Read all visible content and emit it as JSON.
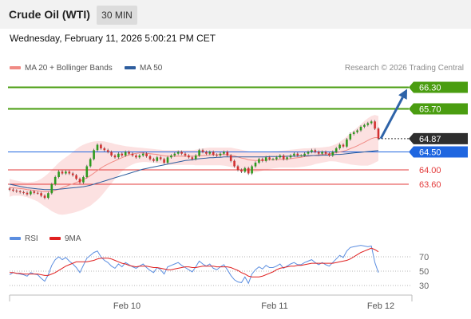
{
  "header": {
    "title": "Crude Oil (WTI)",
    "timeframe": "30 MIN"
  },
  "datetime": "Wednesday, February 11, 2026 5:00:21 PM CET",
  "legend_main": [
    {
      "label": "MA 20 + Bollinger Bands",
      "color": "#f08a84"
    },
    {
      "label": "MA 50",
      "color": "#2e5e9e"
    }
  ],
  "legend_rsi": [
    {
      "label": "RSI",
      "color": "#5b8ee0"
    },
    {
      "label": "9MA",
      "color": "#e02020"
    }
  ],
  "copyright": "Research © 2026 Trading Central",
  "chart_data": {
    "type": "candlestick",
    "instrument": "Crude Oil (WTI)",
    "interval": "30 MIN",
    "x_ticks": [
      "Feb 10",
      "Feb 11",
      "Feb 12"
    ],
    "ylim": [
      62.6,
      66.6
    ],
    "last_price": {
      "value": 64.87,
      "label": "64.87",
      "color": "#2e2e2e"
    },
    "levels": [
      {
        "value": 66.3,
        "label": "66.30",
        "color": "#4a9d10",
        "kind": "resistance"
      },
      {
        "value": 65.7,
        "label": "65.70",
        "color": "#4a9d10",
        "kind": "resistance"
      },
      {
        "value": 64.5,
        "label": "64.50",
        "color": "#1f66e0",
        "kind": "pivot"
      },
      {
        "value": 64.0,
        "label": "64.00",
        "color": "#e33b3b",
        "kind": "support"
      },
      {
        "value": 63.6,
        "label": "63.60",
        "color": "#e33b3b",
        "kind": "support"
      }
    ],
    "projection": {
      "from": 64.87,
      "to": 66.3,
      "color": "#2e63a8"
    },
    "closes": [
      63.45,
      63.42,
      63.4,
      63.38,
      63.36,
      63.32,
      63.4,
      63.36,
      63.35,
      63.28,
      63.22,
      63.35,
      63.6,
      63.8,
      63.95,
      63.9,
      63.95,
      63.9,
      63.85,
      63.75,
      63.65,
      63.8,
      64.1,
      64.3,
      64.55,
      64.7,
      64.6,
      64.55,
      64.5,
      64.4,
      64.35,
      64.45,
      64.4,
      64.5,
      64.45,
      64.4,
      64.35,
      64.4,
      64.45,
      64.38,
      64.3,
      64.25,
      64.35,
      64.3,
      64.2,
      64.35,
      64.4,
      64.45,
      64.5,
      64.45,
      64.4,
      64.35,
      64.3,
      64.4,
      64.55,
      64.5,
      64.45,
      64.5,
      64.42,
      64.4,
      64.45,
      64.5,
      64.4,
      64.25,
      64.1,
      64.0,
      63.95,
      64.05,
      63.9,
      64.1,
      64.2,
      64.3,
      64.25,
      64.35,
      64.3,
      64.3,
      64.35,
      64.4,
      64.3,
      64.35,
      64.4,
      64.45,
      64.4,
      64.4,
      64.45,
      64.5,
      64.55,
      64.5,
      64.45,
      64.5,
      64.45,
      64.4,
      64.5,
      64.6,
      64.7,
      64.65,
      64.85,
      65.0,
      65.05,
      65.1,
      65.2,
      65.25,
      65.3,
      65.35,
      65.15,
      64.87
    ],
    "ma20": [
      63.5,
      63.5,
      63.49,
      63.48,
      63.47,
      63.45,
      63.44,
      63.43,
      63.42,
      63.4,
      63.39,
      63.39,
      63.4,
      63.43,
      63.46,
      63.5,
      63.54,
      63.58,
      63.61,
      63.65,
      63.69,
      63.73,
      63.78,
      63.84,
      63.91,
      63.98,
      64.05,
      64.11,
      64.16,
      64.21,
      64.25,
      64.3,
      64.34,
      64.38,
      64.42,
      64.44,
      64.46,
      64.47,
      64.47,
      64.46,
      64.45,
      64.44,
      64.43,
      64.41,
      64.39,
      64.38,
      64.38,
      64.38,
      64.38,
      64.38,
      64.38,
      64.38,
      64.38,
      64.38,
      64.39,
      64.4,
      64.41,
      64.42,
      64.42,
      64.42,
      64.43,
      64.43,
      64.42,
      64.41,
      64.39,
      64.36,
      64.33,
      64.31,
      64.28,
      64.27,
      64.26,
      64.26,
      64.26,
      64.27,
      64.28,
      64.28,
      64.28,
      64.29,
      64.29,
      64.3,
      64.31,
      64.33,
      64.34,
      64.35,
      64.37,
      64.38,
      64.39,
      64.41,
      64.42,
      64.43,
      64.44,
      64.45,
      64.46,
      64.48,
      64.5,
      64.52,
      64.55,
      64.59,
      64.63,
      64.67,
      64.72,
      64.77,
      64.82,
      64.87,
      64.9,
      64.9
    ],
    "ma50": [
      63.6,
      63.58,
      63.56,
      63.54,
      63.52,
      63.5,
      63.49,
      63.48,
      63.47,
      63.46,
      63.45,
      63.45,
      63.45,
      63.45,
      63.46,
      63.47,
      63.48,
      63.49,
      63.5,
      63.51,
      63.52,
      63.53,
      63.55,
      63.57,
      63.6,
      63.63,
      63.66,
      63.69,
      63.72,
      63.75,
      63.78,
      63.81,
      63.84,
      63.87,
      63.9,
      63.93,
      63.96,
      63.99,
      64.02,
      64.04,
      64.06,
      64.08,
      64.1,
      64.12,
      64.14,
      64.16,
      64.18,
      64.2,
      64.22,
      64.24,
      64.26,
      64.27,
      64.28,
      64.3,
      64.31,
      64.32,
      64.33,
      64.34,
      64.34,
      64.35,
      64.35,
      64.36,
      64.36,
      64.36,
      64.36,
      64.36,
      64.36,
      64.36,
      64.36,
      64.36,
      64.36,
      64.36,
      64.36,
      64.36,
      64.37,
      64.37,
      64.37,
      64.37,
      64.37,
      64.38,
      64.38,
      64.38,
      64.38,
      64.39,
      64.39,
      64.39,
      64.4,
      64.4,
      64.4,
      64.41,
      64.41,
      64.41,
      64.42,
      64.43,
      64.43,
      64.44,
      64.45,
      64.46,
      64.47,
      64.48,
      64.49,
      64.5,
      64.51,
      64.52,
      64.53,
      64.54
    ],
    "bb_upper": [
      63.75,
      63.72,
      63.7,
      63.68,
      63.66,
      63.65,
      63.66,
      63.67,
      63.7,
      63.75,
      63.82,
      63.9,
      64.0,
      64.1,
      64.2,
      64.28,
      64.35,
      64.42,
      64.5,
      64.58,
      64.65,
      64.7,
      64.74,
      64.77,
      64.79,
      64.8,
      64.8,
      64.79,
      64.77,
      64.75,
      64.72,
      64.7,
      64.68,
      64.66,
      64.65,
      64.64,
      64.63,
      64.62,
      64.61,
      64.6,
      64.59,
      64.58,
      64.57,
      64.56,
      64.55,
      64.55,
      64.55,
      64.55,
      64.55,
      64.55,
      64.55,
      64.55,
      64.55,
      64.56,
      64.58,
      64.6,
      64.61,
      64.62,
      64.62,
      64.62,
      64.62,
      64.62,
      64.62,
      64.62,
      64.6,
      64.58,
      64.56,
      64.54,
      64.52,
      64.5,
      64.49,
      64.49,
      64.49,
      64.5,
      64.51,
      64.52,
      64.52,
      64.53,
      64.54,
      64.55,
      64.56,
      64.57,
      64.58,
      64.59,
      64.6,
      64.6,
      64.61,
      64.62,
      64.62,
      64.63,
      64.64,
      64.65,
      64.68,
      64.72,
      64.78,
      64.85,
      64.93,
      65.02,
      65.1,
      65.18,
      65.27,
      65.36,
      65.44,
      65.5,
      65.53,
      65.5
    ],
    "bb_lower": [
      63.25,
      63.28,
      63.28,
      63.28,
      63.26,
      63.24,
      63.2,
      63.16,
      63.12,
      63.05,
      62.98,
      62.92,
      62.85,
      62.8,
      62.76,
      62.75,
      62.76,
      62.78,
      62.8,
      62.83,
      62.86,
      62.9,
      62.95,
      63.0,
      63.08,
      63.16,
      63.26,
      63.38,
      63.5,
      63.62,
      63.75,
      63.86,
      63.96,
      64.04,
      64.1,
      64.15,
      64.19,
      64.21,
      64.22,
      64.22,
      64.21,
      64.2,
      64.19,
      64.17,
      64.15,
      64.14,
      64.14,
      64.14,
      64.14,
      64.14,
      64.14,
      64.14,
      64.14,
      64.13,
      64.13,
      64.13,
      64.13,
      64.13,
      64.13,
      64.13,
      64.13,
      64.12,
      64.1,
      64.08,
      64.05,
      64.02,
      63.98,
      63.95,
      63.92,
      63.92,
      63.93,
      63.95,
      63.98,
      64.0,
      64.02,
      64.04,
      64.05,
      64.06,
      64.06,
      64.06,
      64.06,
      64.06,
      64.07,
      64.08,
      64.09,
      64.11,
      64.13,
      64.16,
      64.18,
      64.2,
      64.22,
      64.24,
      64.24,
      64.23,
      64.21,
      64.19,
      64.17,
      64.15,
      64.14,
      64.13,
      64.12,
      64.12,
      64.12,
      64.15,
      64.2,
      64.25
    ],
    "rsi": {
      "ylim": [
        20,
        80
      ],
      "ticks": [
        70,
        50,
        30
      ],
      "rsi_values": [
        45,
        48,
        47,
        46,
        45,
        43,
        48,
        46,
        45,
        40,
        36,
        45,
        58,
        66,
        70,
        66,
        69,
        64,
        60,
        55,
        48,
        58,
        68,
        72,
        76,
        78,
        70,
        65,
        62,
        57,
        54,
        60,
        56,
        62,
        59,
        56,
        54,
        57,
        60,
        55,
        51,
        48,
        55,
        52,
        46,
        56,
        58,
        60,
        62,
        58,
        55,
        52,
        49,
        56,
        64,
        60,
        57,
        60,
        54,
        52,
        56,
        59,
        52,
        44,
        38,
        35,
        34,
        42,
        33,
        46,
        52,
        56,
        53,
        58,
        55,
        55,
        57,
        60,
        54,
        57,
        60,
        62,
        59,
        59,
        62,
        64,
        66,
        62,
        59,
        62,
        59,
        57,
        62,
        67,
        72,
        69,
        78,
        83,
        84,
        85,
        86,
        85,
        84,
        85,
        62,
        48
      ],
      "ma9_values": [
        48,
        48,
        47,
        47,
        46,
        46,
        46,
        46,
        46,
        45,
        44,
        44,
        46,
        48,
        51,
        54,
        57,
        59,
        61,
        63,
        63,
        63,
        63,
        64,
        65,
        67,
        68,
        68,
        68,
        67,
        65,
        63,
        61,
        60,
        58,
        57,
        56,
        57,
        57,
        57,
        56,
        55,
        55,
        54,
        53,
        52,
        52,
        53,
        54,
        55,
        56,
        56,
        55,
        55,
        56,
        57,
        57,
        57,
        57,
        56,
        56,
        56,
        56,
        55,
        53,
        51,
        48,
        46,
        43,
        42,
        42,
        42,
        43,
        45,
        47,
        49,
        52,
        54,
        55,
        56,
        57,
        57,
        58,
        58,
        59,
        60,
        61,
        61,
        61,
        61,
        61,
        61,
        61,
        62,
        63,
        64,
        65,
        67,
        70,
        73,
        76,
        78,
        80,
        82,
        80,
        77
      ]
    }
  }
}
